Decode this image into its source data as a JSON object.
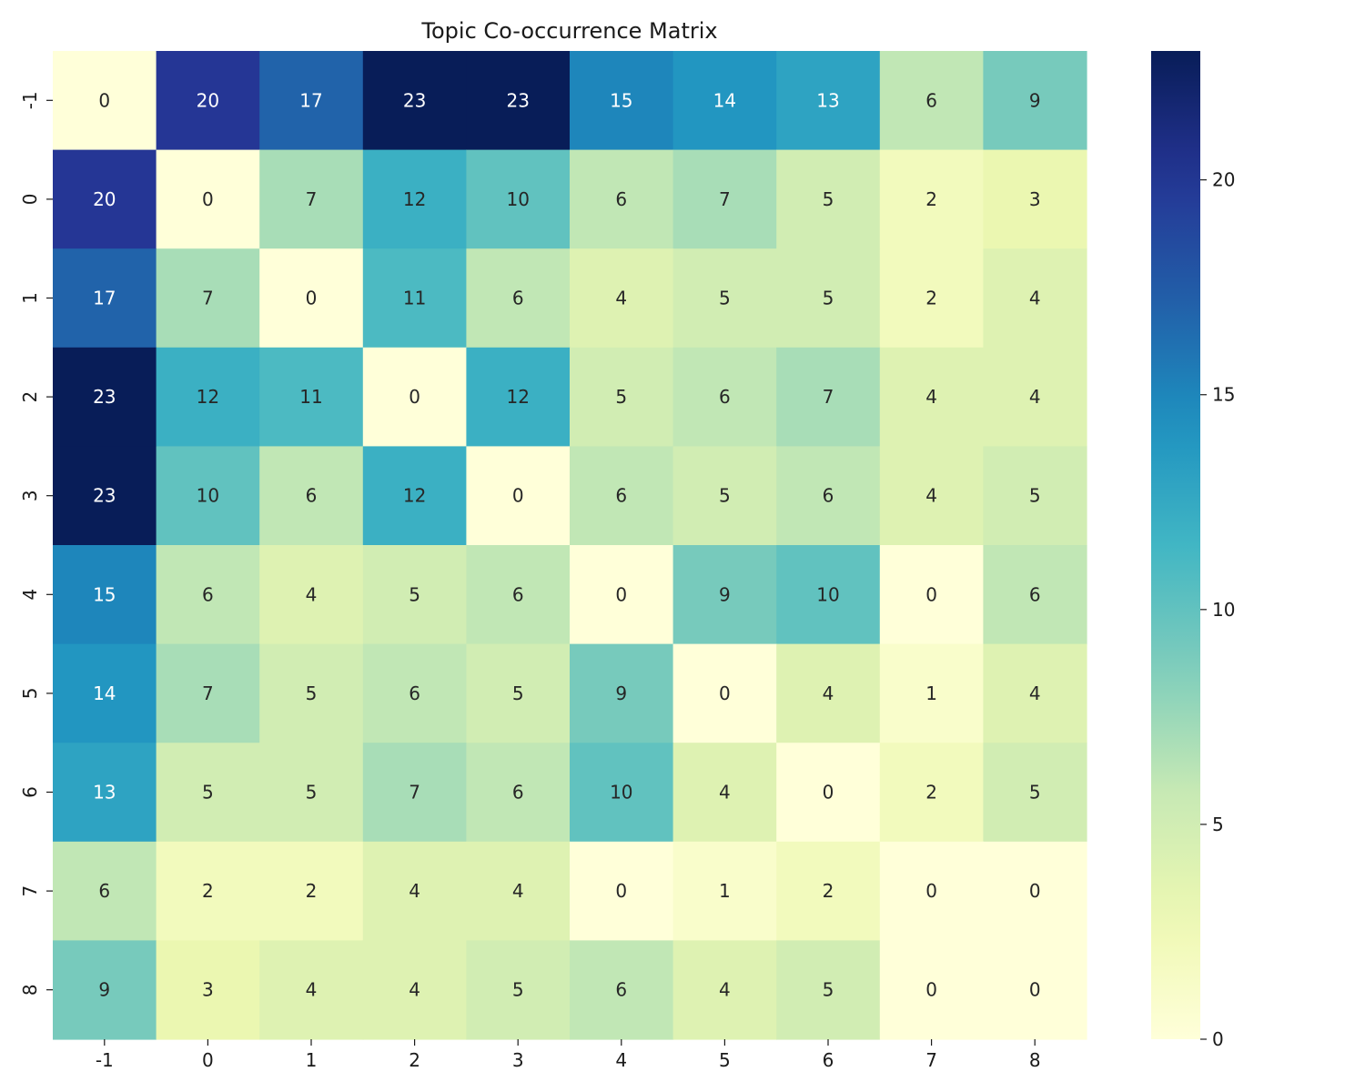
{
  "chart_data": {
    "type": "heatmap",
    "title": "Topic Co-occurrence Matrix",
    "xlabel": "",
    "ylabel": "",
    "x_categories": [
      "-1",
      "0",
      "1",
      "2",
      "3",
      "4",
      "5",
      "6",
      "7",
      "8"
    ],
    "y_categories": [
      "-1",
      "0",
      "1",
      "2",
      "3",
      "4",
      "5",
      "6",
      "7",
      "8"
    ],
    "values": [
      [
        0,
        20,
        17,
        23,
        23,
        15,
        14,
        13,
        6,
        9
      ],
      [
        20,
        0,
        7,
        12,
        10,
        6,
        7,
        5,
        2,
        3
      ],
      [
        17,
        7,
        0,
        11,
        6,
        4,
        5,
        5,
        2,
        4
      ],
      [
        23,
        12,
        11,
        0,
        12,
        5,
        6,
        7,
        4,
        4
      ],
      [
        23,
        10,
        6,
        12,
        0,
        6,
        5,
        6,
        4,
        5
      ],
      [
        15,
        6,
        4,
        5,
        6,
        0,
        9,
        10,
        0,
        6
      ],
      [
        14,
        7,
        5,
        6,
        5,
        9,
        0,
        4,
        1,
        4
      ],
      [
        13,
        5,
        5,
        7,
        6,
        10,
        4,
        0,
        2,
        5
      ],
      [
        6,
        2,
        2,
        4,
        4,
        0,
        1,
        2,
        0,
        0
      ],
      [
        9,
        3,
        4,
        4,
        5,
        6,
        4,
        5,
        0,
        0
      ]
    ],
    "colormap": "YlGnBu",
    "vmin": 0,
    "vmax": 23,
    "colorbar_ticks": [
      "0",
      "5",
      "10",
      "15",
      "20"
    ],
    "annotated": true
  }
}
